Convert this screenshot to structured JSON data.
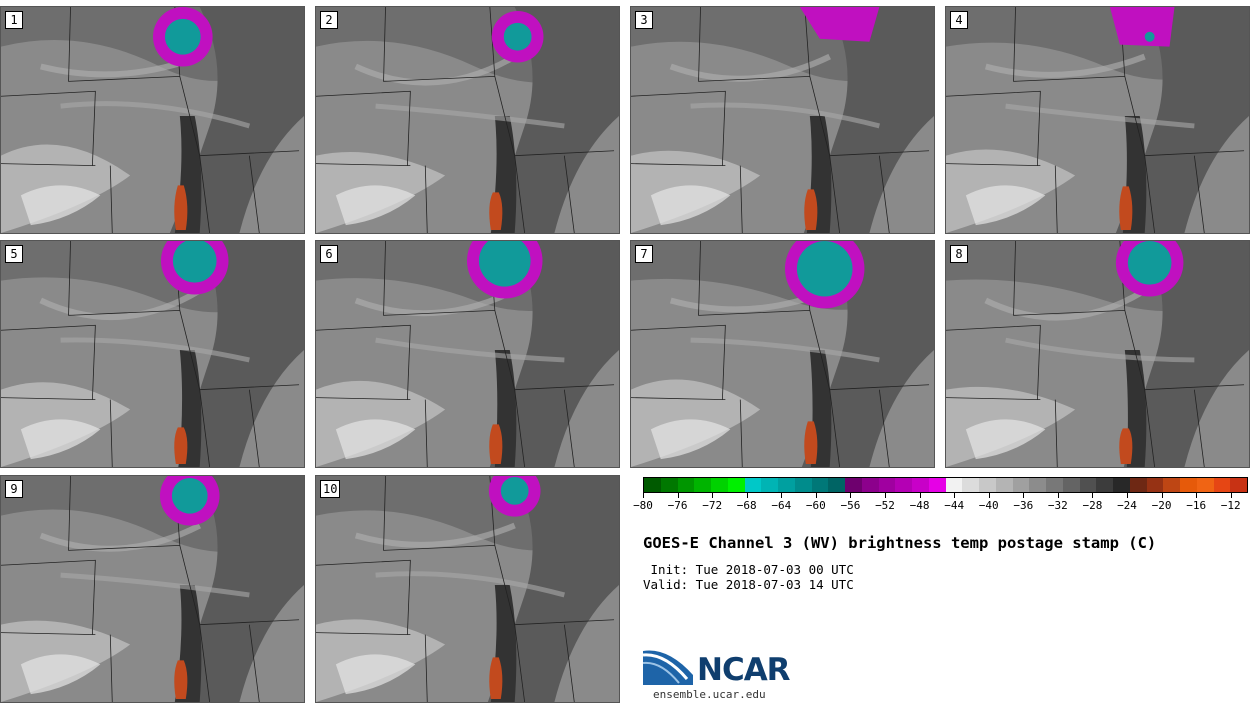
{
  "title": "GOES-E Channel 3 (WV) brightness temp postage stamp (C)",
  "init_line": " Init: Tue 2018-07-03 00 UTC",
  "valid_line": "Valid: Tue 2018-07-03 14 UTC",
  "logo": {
    "name": "NCAR",
    "url": "ensemble.ucar.edu"
  },
  "members": [
    "1",
    "2",
    "3",
    "4",
    "5",
    "6",
    "7",
    "8",
    "9",
    "10"
  ],
  "colorbar": {
    "min": -80,
    "max": -10,
    "step": 2,
    "tick_labels": [
      "−80",
      "−76",
      "−72",
      "−68",
      "−64",
      "−60",
      "−56",
      "−52",
      "−48",
      "−44",
      "−40",
      "−36",
      "−32",
      "−28",
      "−24",
      "−20",
      "−16",
      "−12"
    ],
    "tick_values": [
      -80,
      -76,
      -72,
      -68,
      -64,
      -60,
      -56,
      -52,
      -48,
      -44,
      -40,
      -36,
      -32,
      -28,
      -24,
      -20,
      -16,
      -12
    ],
    "colors": [
      "#005a00",
      "#007800",
      "#009600",
      "#00b400",
      "#00d200",
      "#00f000",
      "#00c8c8",
      "#00b4b4",
      "#00a0a0",
      "#008c8c",
      "#007878",
      "#006464",
      "#6e006e",
      "#8c008c",
      "#a000a0",
      "#b400b4",
      "#c800c8",
      "#e600e6",
      "#f2f2f2",
      "#dcdcdc",
      "#c8c8c8",
      "#b4b4b4",
      "#a0a0a0",
      "#8c8c8c",
      "#787878",
      "#646464",
      "#505050",
      "#3c3c3c",
      "#282828",
      "#6e2814",
      "#963214",
      "#be4614",
      "#e65a0a",
      "#f06414",
      "#e64614",
      "#c83214"
    ]
  }
}
